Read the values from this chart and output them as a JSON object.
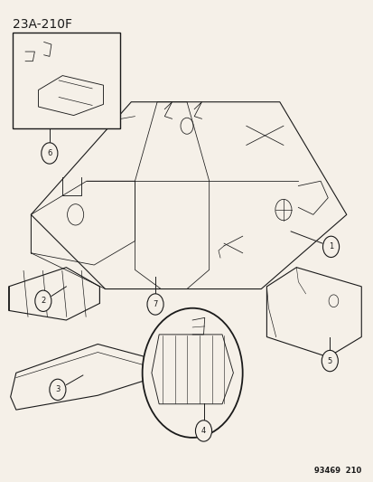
{
  "title": "23A-210F",
  "footer": "93469  210",
  "bg_color": "#f5f0e8",
  "line_color": "#1a1a1a",
  "fig_width": 4.14,
  "fig_height": 5.33,
  "dpi": 100
}
